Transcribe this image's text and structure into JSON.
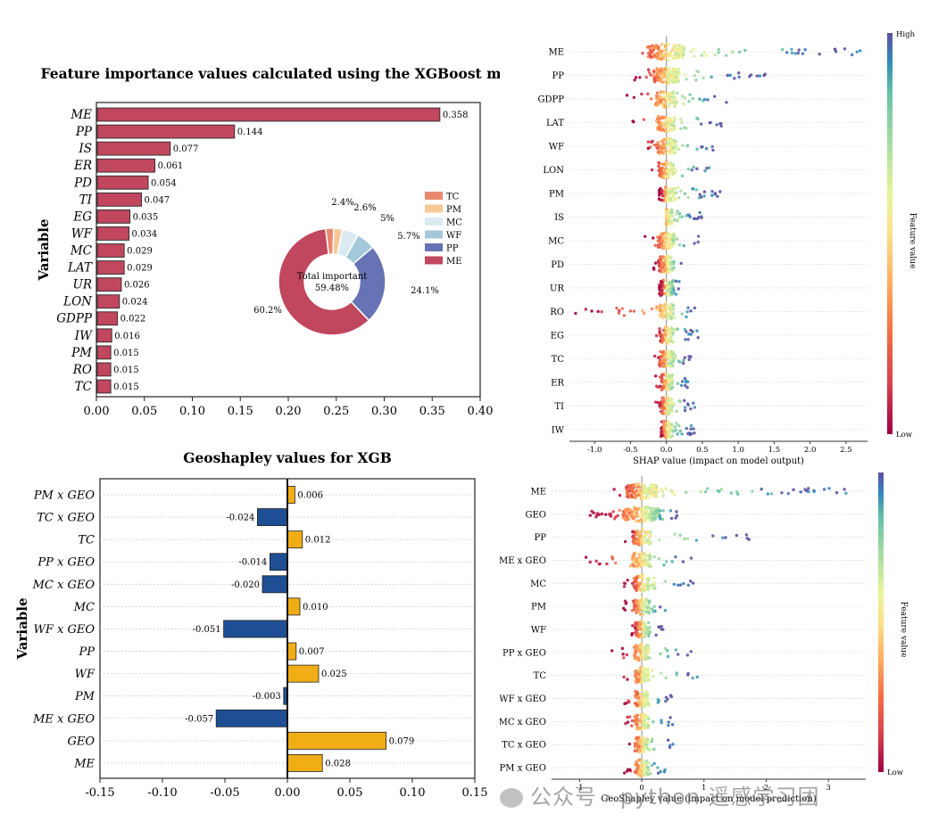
{
  "watermark": "公众号 · python 遥感学习团",
  "chart_data": [
    {
      "type": "bar",
      "orientation": "horizontal",
      "title": "Feature importance values calculated using the XGBoost model",
      "ylabel": "Variable",
      "xlabel": "",
      "categories": [
        "ME",
        "PP",
        "IS",
        "ER",
        "PD",
        "TI",
        "EG",
        "WF",
        "MC",
        "LAT",
        "UR",
        "LON",
        "GDPP",
        "IW",
        "PM",
        "RO",
        "TC"
      ],
      "values": [
        0.358,
        0.144,
        0.077,
        0.061,
        0.054,
        0.047,
        0.035,
        0.034,
        0.029,
        0.029,
        0.026,
        0.024,
        0.022,
        0.016,
        0.015,
        0.015,
        0.015
      ],
      "value_labels": [
        "0.358",
        "0.144",
        "0.077",
        "0.061",
        "0.054",
        "0.047",
        "0.035",
        "0.034",
        "0.029",
        "0.029",
        "0.026",
        "0.024",
        "0.022",
        "0.016",
        "0.015",
        "0.015",
        "0.015"
      ],
      "xlim": [
        0,
        0.4
      ],
      "xticks": [
        "0.00",
        "0.05",
        "0.10",
        "0.15",
        "0.20",
        "0.25",
        "0.30",
        "0.35",
        "0.40"
      ],
      "bar_color": "#c0475e",
      "inset_donut": {
        "center_text": [
          "Total important",
          "59.48%"
        ],
        "slices": [
          {
            "label": "ME",
            "value": 60.2,
            "text": "60.2%",
            "color": "#c0475e"
          },
          {
            "label": "PP",
            "value": 24.1,
            "text": "24.1%",
            "color": "#6673b5"
          },
          {
            "label": "WF",
            "value": 5.7,
            "text": "5.7%",
            "color": "#a3c8d9"
          },
          {
            "label": "MC",
            "value": 5.0,
            "text": "5%",
            "color": "#dbeaf0"
          },
          {
            "label": "PM",
            "value": 2.6,
            "text": "2.6%",
            "color": "#f7c896"
          },
          {
            "label": "TC",
            "value": 2.4,
            "text": "2.4%",
            "color": "#e8886f"
          }
        ],
        "legend": [
          {
            "label": "TC",
            "color": "#e8886f"
          },
          {
            "label": "PM",
            "color": "#f7c896"
          },
          {
            "label": "MC",
            "color": "#dbeaf0"
          },
          {
            "label": "WF",
            "color": "#a3c8d9"
          },
          {
            "label": "PP",
            "color": "#6673b5"
          },
          {
            "label": "ME",
            "color": "#c0475e"
          }
        ]
      }
    },
    {
      "type": "scatter",
      "subtype": "beeswarm",
      "xlabel": "SHAP value (impact on model output)",
      "colorbar_label": "Feature value",
      "colorbar_high": "High",
      "colorbar_low": "Low",
      "features": [
        "ME",
        "PP",
        "GDPP",
        "LAT",
        "WF",
        "LON",
        "PM",
        "IS",
        "MC",
        "PD",
        "UR",
        "RO",
        "EG",
        "TC",
        "ER",
        "TI",
        "IW"
      ],
      "xlim": [
        -1.35,
        2.8
      ],
      "xticks": [
        -1.0,
        -0.5,
        0.0,
        0.5,
        1.0,
        1.5,
        2.0,
        2.5
      ],
      "xtick_labels": [
        "-1.0",
        "-0.5",
        "0.0",
        "0.5",
        "1.0",
        "1.5",
        "2.0",
        "2.5"
      ],
      "ranges": [
        [
          -0.6,
          2.7
        ],
        [
          -0.45,
          1.4
        ],
        [
          -0.55,
          0.85
        ],
        [
          -0.5,
          0.8
        ],
        [
          -0.4,
          0.7
        ],
        [
          -0.25,
          0.6
        ],
        [
          -0.1,
          0.75
        ],
        [
          0,
          0.5
        ],
        [
          -0.3,
          0.5
        ],
        [
          -0.2,
          0.3
        ],
        [
          -0.1,
          0.2
        ],
        [
          -1.3,
          0.4
        ],
        [
          -0.15,
          0.45
        ],
        [
          -0.2,
          0.35
        ],
        [
          -0.15,
          0.3
        ],
        [
          -0.15,
          0.4
        ],
        [
          -0.1,
          0.4
        ]
      ],
      "spread": [
        1.0,
        0.7,
        0.6,
        0.5,
        0.55,
        0.45,
        0.5,
        0.35,
        0.5,
        0.45,
        0.4,
        0.4,
        0.4,
        0.4,
        0.35,
        0.35,
        0.3
      ],
      "colormap": "Spectral"
    },
    {
      "type": "bar",
      "orientation": "horizontal",
      "title": "Geoshapley values for XGB",
      "ylabel": "Variable",
      "xlabel": "",
      "categories": [
        "PM x GEO",
        "TC x GEO",
        "TC",
        "PP x GEO",
        "MC x GEO",
        "MC",
        "WF x GEO",
        "PP",
        "WF",
        "PM",
        "ME x GEO",
        "GEO",
        "ME"
      ],
      "values": [
        0.006,
        -0.024,
        0.012,
        -0.014,
        -0.02,
        0.01,
        -0.051,
        0.007,
        0.025,
        -0.003,
        -0.057,
        0.079,
        0.028
      ],
      "value_labels": [
        "0.006",
        "-0.024",
        "0.012",
        "-0.014",
        "-0.020",
        "0.010",
        "-0.051",
        "0.007",
        "0.025",
        "-0.003",
        "-0.057",
        "0.079",
        "0.028"
      ],
      "xlim": [
        -0.15,
        0.15
      ],
      "xticks": [
        "-0.15",
        "-0.10",
        "-0.05",
        "0.00",
        "0.05",
        "0.10",
        "0.15"
      ],
      "positive_color": "#f0ad16",
      "negative_color": "#1e4f94"
    },
    {
      "type": "scatter",
      "subtype": "beeswarm",
      "xlabel": "GeoShapley value (impact on model prediction)",
      "colorbar_label": "Feature value",
      "colorbar_low": "Low",
      "features": [
        "ME",
        "GEO",
        "PP",
        "ME x GEO",
        "MC",
        "PM",
        "WF",
        "PP x GEO",
        "TC",
        "WF x GEO",
        "MC x GEO",
        "TC x GEO",
        "PM x GEO"
      ],
      "xlim": [
        -1.45,
        3.6
      ],
      "xticks": [
        -1,
        0,
        1,
        2,
        3
      ],
      "xtick_labels": [
        "-1",
        "0",
        "1",
        "2",
        "3"
      ],
      "ranges": [
        [
          -0.5,
          3.3
        ],
        [
          -0.9,
          0.6
        ],
        [
          -0.3,
          1.9
        ],
        [
          -0.95,
          0.8
        ],
        [
          -0.3,
          0.9
        ],
        [
          -0.3,
          0.4
        ],
        [
          -0.2,
          0.35
        ],
        [
          -0.5,
          0.8
        ],
        [
          -0.3,
          1.2
        ],
        [
          -0.3,
          0.5
        ],
        [
          -0.3,
          0.5
        ],
        [
          -0.3,
          0.5
        ],
        [
          -0.3,
          0.4
        ]
      ],
      "spread": [
        1.0,
        1.2,
        0.6,
        0.6,
        0.55,
        0.5,
        0.45,
        0.5,
        0.45,
        0.45,
        0.45,
        0.45,
        0.45
      ],
      "colormap": "Spectral"
    }
  ]
}
